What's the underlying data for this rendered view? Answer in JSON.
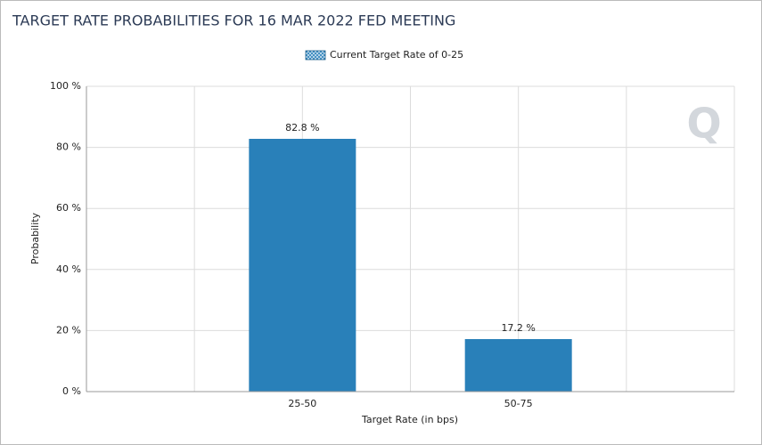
{
  "chart_data": {
    "type": "bar",
    "title": "TARGET RATE PROBABILITIES FOR 16 MAR 2022 FED MEETING",
    "watermark": "Q",
    "x_label": "Target Rate (in bps)",
    "y_label": "Probability",
    "categories": [
      "25-50",
      "50-75"
    ],
    "series": [
      {
        "name": "Current Target Rate of 0-25",
        "color": "#2980b9",
        "values": [
          82.8,
          17.2
        ],
        "value_labels": [
          "82.8 %",
          "17.2 %"
        ]
      }
    ],
    "ylim": [
      0,
      100
    ],
    "yticks": [
      {
        "value": 0,
        "label": "0 %"
      },
      {
        "value": 20,
        "label": "20 %"
      },
      {
        "value": 40,
        "label": "40 %"
      },
      {
        "value": 60,
        "label": "60 %"
      },
      {
        "value": 80,
        "label": "80 %"
      },
      {
        "value": 100,
        "label": "100 %"
      }
    ],
    "grid": true,
    "legend": "top"
  }
}
